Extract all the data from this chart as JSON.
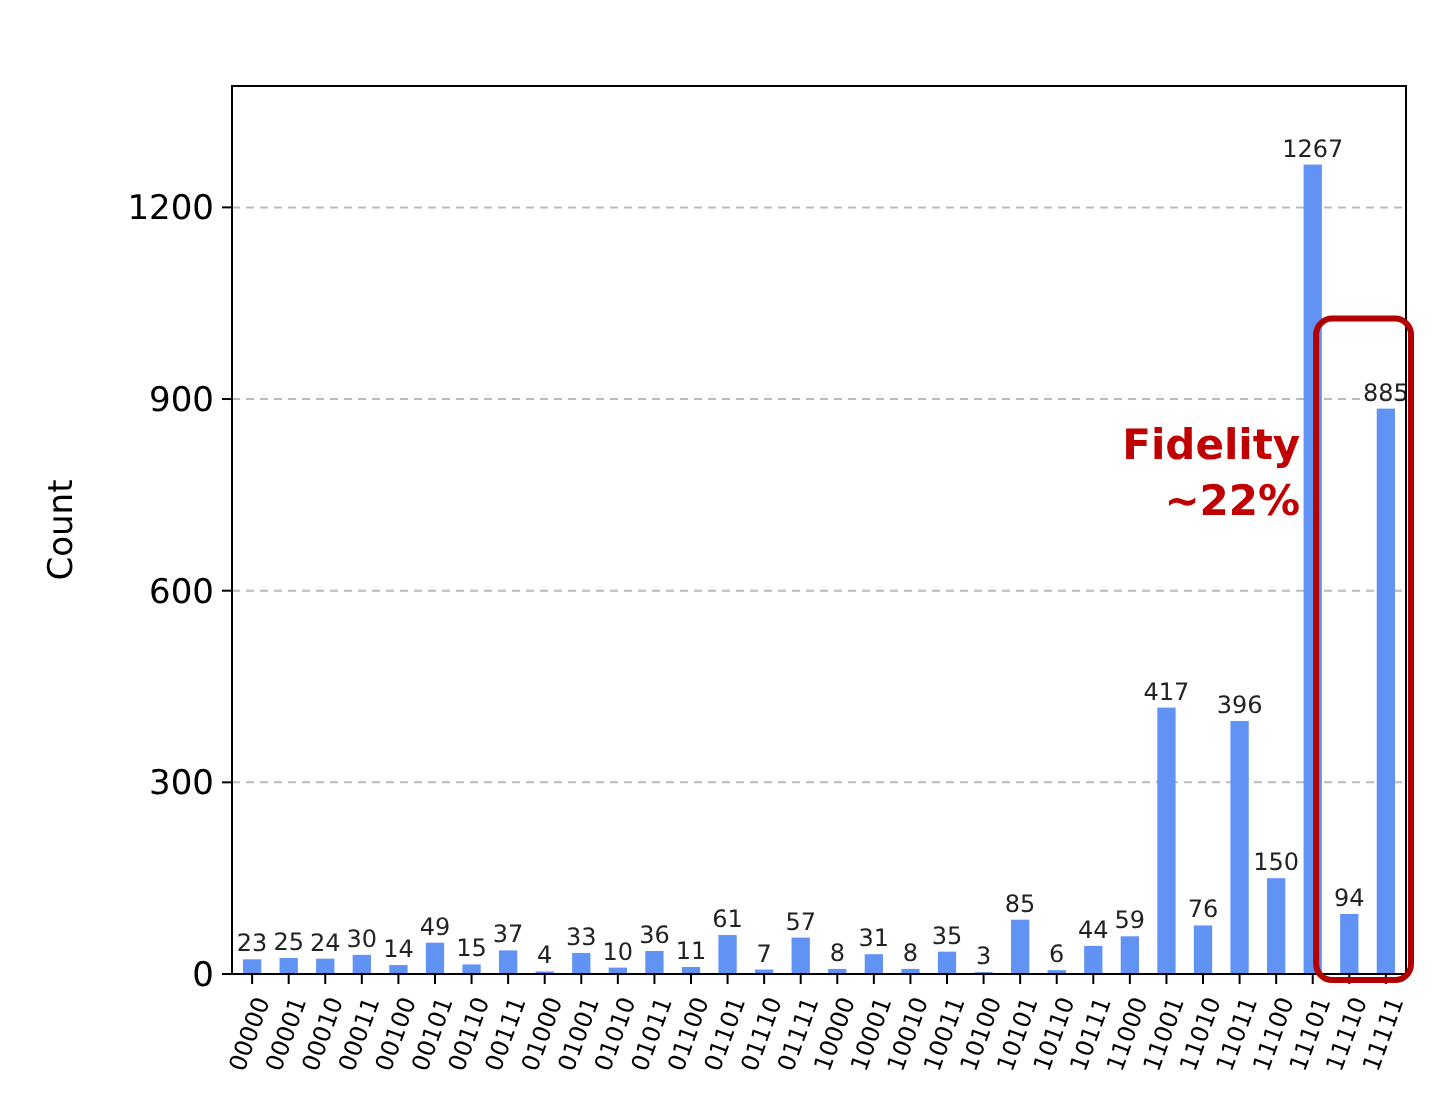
{
  "chart_data": {
    "type": "bar",
    "ylabel": "Count",
    "categories": [
      "00000",
      "00001",
      "00010",
      "00011",
      "00100",
      "00101",
      "00110",
      "00111",
      "01000",
      "01001",
      "01010",
      "01011",
      "01100",
      "01101",
      "01110",
      "01111",
      "10000",
      "10001",
      "10010",
      "10011",
      "10100",
      "10101",
      "10110",
      "10111",
      "11000",
      "11001",
      "11010",
      "11011",
      "11100",
      "11101",
      "11110",
      "11111"
    ],
    "values": [
      23,
      25,
      24,
      30,
      14,
      49,
      15,
      37,
      4,
      33,
      10,
      36,
      11,
      61,
      7,
      57,
      8,
      31,
      8,
      35,
      3,
      85,
      6,
      44,
      59,
      417,
      76,
      396,
      150,
      1267,
      94,
      885
    ],
    "color": "#6193f5",
    "ylim": [
      0,
      1390
    ],
    "yticks": [
      0,
      300,
      600,
      900,
      1200
    ],
    "grid": "y",
    "data_labels": true,
    "annotations": [
      "Fidelity ~22%"
    ]
  }
}
